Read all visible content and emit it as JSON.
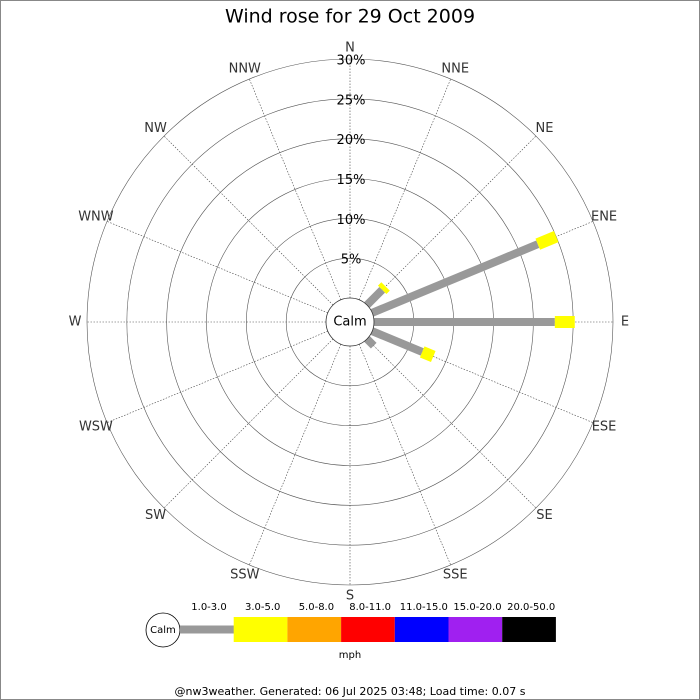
{
  "chart_data": {
    "type": "wind-rose",
    "title": "Wind rose for 29 Oct 2009",
    "categories": [
      "N",
      "NNE",
      "NE",
      "ENE",
      "E",
      "ESE",
      "SE",
      "SSE",
      "S",
      "SSW",
      "SW",
      "WSW",
      "W",
      "WNW",
      "NW",
      "NNW"
    ],
    "calm_label": "Calm",
    "unit_label": "mph",
    "ylim": [
      0,
      30
    ],
    "yticks": [
      {
        "value": 5,
        "label": "5%"
      },
      {
        "value": 10,
        "label": "10%"
      },
      {
        "value": 15,
        "label": "15%"
      },
      {
        "value": 20,
        "label": "20%"
      },
      {
        "value": 25,
        "label": "25%"
      },
      {
        "value": 30,
        "label": "30%"
      }
    ],
    "grid": true,
    "series": [
      {
        "name": "1.0-3.0",
        "color": "#999999",
        "values": [
          0,
          0,
          2.7,
          22.5,
          22.7,
          6.8,
          1.2,
          0,
          0,
          0,
          0,
          0,
          0,
          0,
          0,
          0
        ]
      },
      {
        "name": "3.0-5.0",
        "color": "#ffff00",
        "values": [
          0,
          0,
          0.6,
          2.5,
          2.5,
          1.5,
          0,
          0,
          0,
          0,
          0,
          0,
          0,
          0,
          0,
          0
        ]
      },
      {
        "name": "5.0-8.0",
        "color": "#ffa500",
        "values": [
          0,
          0,
          0,
          0,
          0,
          0,
          0,
          0,
          0,
          0,
          0,
          0,
          0,
          0,
          0,
          0
        ]
      },
      {
        "name": "8.0-11.0",
        "color": "#ff0000",
        "values": [
          0,
          0,
          0,
          0,
          0,
          0,
          0,
          0,
          0,
          0,
          0,
          0,
          0,
          0,
          0,
          0
        ]
      },
      {
        "name": "11.0-15.0",
        "color": "#0000ff",
        "values": [
          0,
          0,
          0,
          0,
          0,
          0,
          0,
          0,
          0,
          0,
          0,
          0,
          0,
          0,
          0,
          0
        ]
      },
      {
        "name": "15.0-20.0",
        "color": "#a020f0",
        "values": [
          0,
          0,
          0,
          0,
          0,
          0,
          0,
          0,
          0,
          0,
          0,
          0,
          0,
          0,
          0,
          0
        ]
      },
      {
        "name": "20.0-50.0",
        "color": "#000000",
        "values": [
          0,
          0,
          0,
          0,
          0,
          0,
          0,
          0,
          0,
          0,
          0,
          0,
          0,
          0,
          0,
          0
        ]
      }
    ],
    "footer": "@nw3weather. Generated: 06 Jul 2025 03:48; Load time: 0.07 s"
  }
}
